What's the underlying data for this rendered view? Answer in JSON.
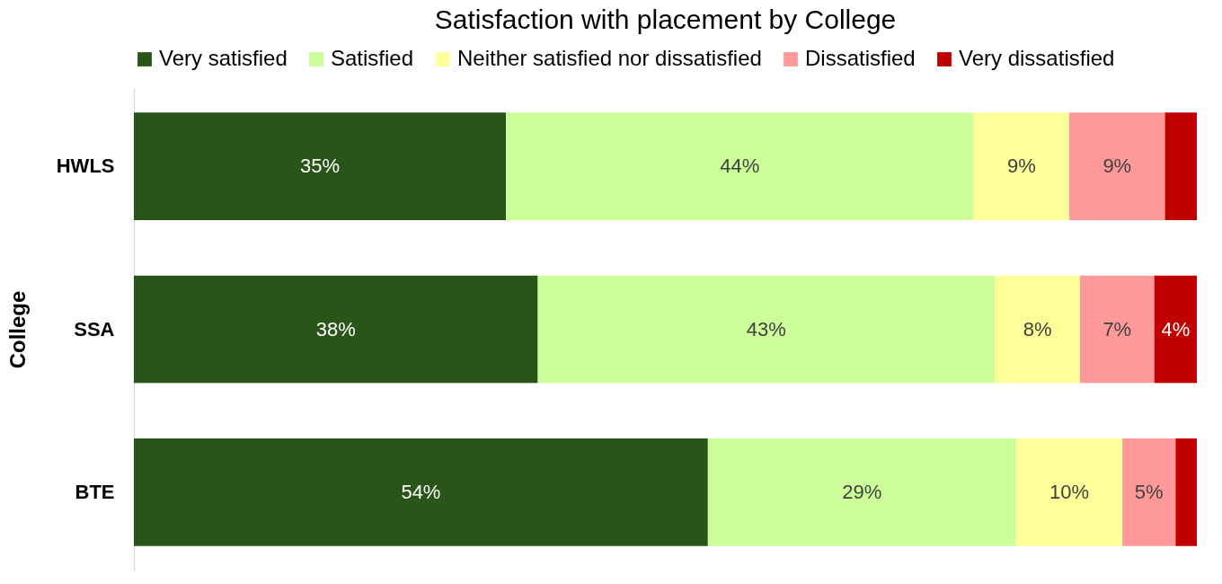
{
  "chart_data": {
    "type": "bar",
    "orientation": "horizontal",
    "stacked": true,
    "title": "Satisfaction with placement by College",
    "ylabel": "College",
    "categories": [
      "HWLS",
      "SSA",
      "BTE"
    ],
    "legend": "top",
    "grid": false,
    "series": [
      {
        "name": "Very satisfied",
        "color": "#2a5519",
        "values": [
          35,
          38,
          54
        ],
        "value_labels": [
          "35%",
          "38%",
          "54%"
        ]
      },
      {
        "name": "Satisfied",
        "color": "#ccff99",
        "values": [
          44,
          43,
          29
        ],
        "value_labels": [
          "44%",
          "43%",
          "29%"
        ]
      },
      {
        "name": "Neither satisfied nor dissatisfied",
        "color": "#ffff99",
        "values": [
          9,
          8,
          10
        ],
        "value_labels": [
          "9%",
          "8%",
          "10%"
        ]
      },
      {
        "name": "Dissatisfied",
        "color": "#ff9999",
        "values": [
          9,
          7,
          5
        ],
        "value_labels": [
          "9%",
          "7%",
          "5%"
        ]
      },
      {
        "name": "Very dissatisfied",
        "color": "#c00000",
        "values": [
          3,
          4,
          2
        ],
        "value_labels": [
          null,
          "4%",
          null
        ]
      }
    ]
  }
}
